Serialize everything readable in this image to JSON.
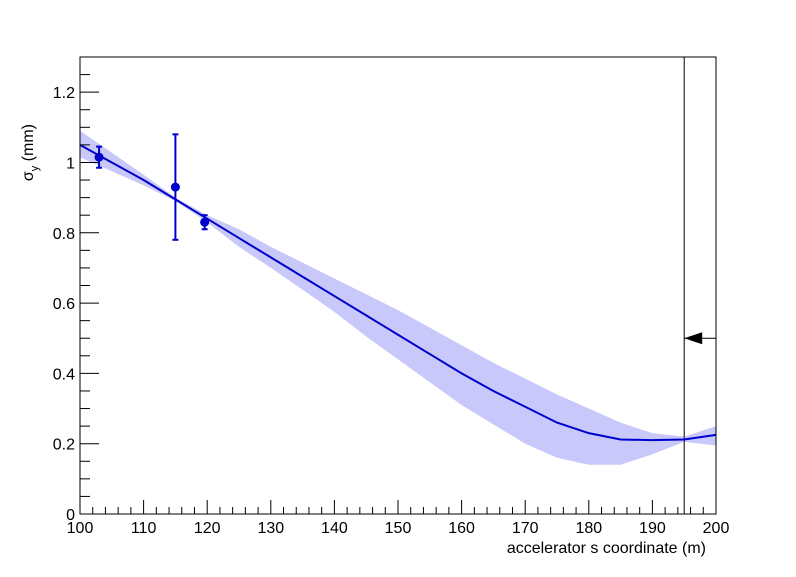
{
  "chart_data": {
    "type": "line",
    "title": "",
    "xlabel": "accelerator s coordinate (m)",
    "ylabel": {
      "symbol": "σ",
      "subscript": "y",
      "unit": " (mm)"
    },
    "xlim": [
      100,
      200
    ],
    "ylim": [
      0,
      1.3
    ],
    "x_ticks": [
      100,
      110,
      120,
      130,
      140,
      150,
      160,
      170,
      180,
      190,
      200
    ],
    "x_tick_labels": [
      "100",
      "110",
      "120",
      "130",
      "140",
      "150",
      "160",
      "170",
      "180",
      "190",
      "200"
    ],
    "y_ticks": [
      0,
      0.2,
      0.4,
      0.6,
      0.8,
      1,
      1.2
    ],
    "y_tick_labels": [
      "0",
      "0.2",
      "0.4",
      "0.6",
      "0.8",
      "1",
      "1.2"
    ],
    "grid": false,
    "series": [
      {
        "kind": "fit-line",
        "color": "#0000cc",
        "x": [
          100,
          105,
          110,
          115,
          120,
          125,
          130,
          135,
          140,
          145,
          150,
          155,
          160,
          165,
          170,
          175,
          180,
          185,
          190,
          195,
          200
        ],
        "y": [
          1.05,
          1.0,
          0.95,
          0.895,
          0.84,
          0.785,
          0.73,
          0.675,
          0.62,
          0.565,
          0.51,
          0.455,
          0.4,
          0.35,
          0.305,
          0.26,
          0.23,
          0.212,
          0.21,
          0.212,
          0.225
        ]
      },
      {
        "kind": "confidence-band",
        "color": "#c8c8fa",
        "x": [
          100,
          105,
          110,
          115,
          120,
          125,
          130,
          135,
          140,
          145,
          150,
          155,
          160,
          165,
          170,
          175,
          180,
          185,
          190,
          195,
          200
        ],
        "upper": [
          1.09,
          1.028,
          0.965,
          0.9,
          0.85,
          0.81,
          0.76,
          0.715,
          0.67,
          0.625,
          0.58,
          0.53,
          0.48,
          0.43,
          0.385,
          0.34,
          0.3,
          0.26,
          0.23,
          0.22,
          0.25
        ],
        "lower": [
          1.015,
          0.975,
          0.935,
          0.89,
          0.83,
          0.76,
          0.7,
          0.638,
          0.575,
          0.505,
          0.44,
          0.375,
          0.31,
          0.255,
          0.2,
          0.16,
          0.14,
          0.14,
          0.17,
          0.205,
          0.195
        ]
      },
      {
        "kind": "points",
        "color": "#0000cc",
        "x": [
          103,
          115,
          119.6
        ],
        "y": [
          1.015,
          0.93,
          0.83
        ],
        "err_low": [
          0.03,
          0.15,
          0.02
        ],
        "err_high": [
          0.03,
          0.15,
          0.02
        ]
      }
    ],
    "annotations": [
      {
        "kind": "vertical-line",
        "x": 195
      },
      {
        "kind": "arrow",
        "x_from": 200,
        "x_to": 195,
        "y": 0.5,
        "direction": "left"
      }
    ]
  }
}
